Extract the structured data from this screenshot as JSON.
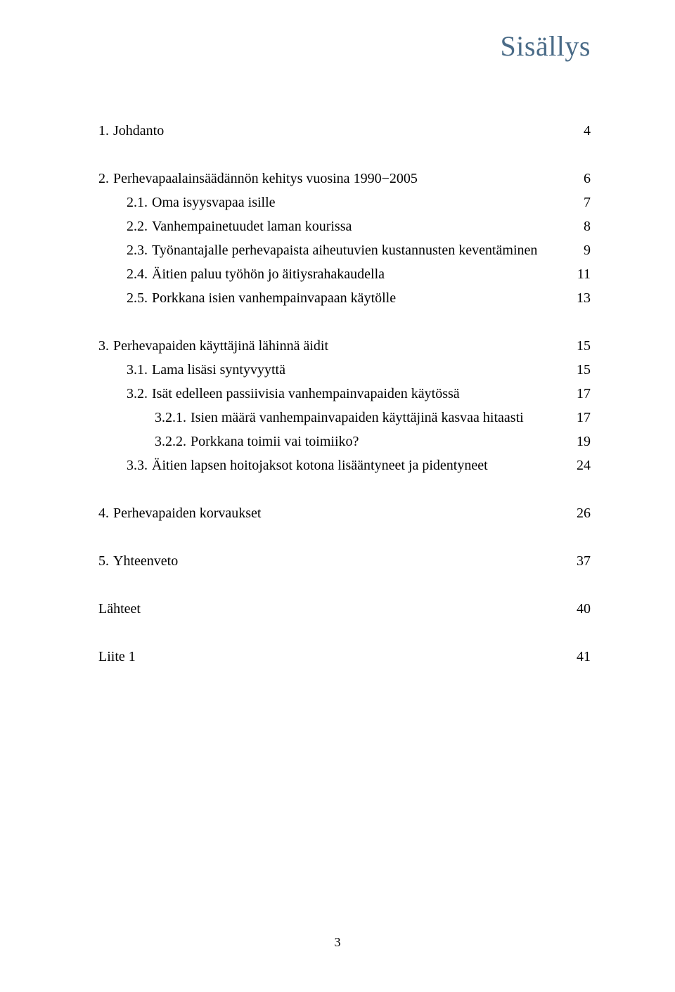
{
  "title": "Sisällys",
  "page_number": "3",
  "colors": {
    "title_color": "#4a6b87",
    "text_color": "#000000",
    "background": "#ffffff"
  },
  "typography": {
    "title_fontsize": 40,
    "body_fontsize": 20,
    "font_family": "Georgia, serif"
  },
  "entries": [
    {
      "level": 0,
      "num": "1.",
      "label": "Johdanto",
      "page": "4",
      "gap_after": true
    },
    {
      "level": 0,
      "num": "2.",
      "label": "Perhevapaalainsäädännön kehitys vuosina 1990−2005",
      "page": "6"
    },
    {
      "level": 1,
      "num": "2.1.",
      "label": "Oma isyysvapaa isille",
      "page": "7"
    },
    {
      "level": 1,
      "num": "2.2.",
      "label": "Vanhempainetuudet laman kourissa",
      "page": "8"
    },
    {
      "level": 1,
      "num": "2.3.",
      "label": "Työnantajalle perhevapaista aiheutuvien kustannusten keventäminen",
      "page": "9"
    },
    {
      "level": 1,
      "num": "2.4.",
      "label": "Äitien paluu työhön jo äitiysrahakaudella",
      "page": "11"
    },
    {
      "level": 1,
      "num": "2.5.",
      "label": "Porkkana isien vanhempainvapaan käytölle",
      "page": "13",
      "gap_after": true
    },
    {
      "level": 0,
      "num": "3.",
      "label": "Perhevapaiden käyttäjinä lähinnä äidit",
      "page": "15"
    },
    {
      "level": 1,
      "num": "3.1.",
      "label": "Lama lisäsi syntyvyyttä",
      "page": "15"
    },
    {
      "level": 1,
      "num": "3.2.",
      "label": "Isät edelleen passiivisia vanhempainvapaiden käytössä",
      "page": "17"
    },
    {
      "level": 2,
      "num": "3.2.1.",
      "label": "Isien määrä vanhempainvapaiden käyttäjinä kasvaa hitaasti",
      "page": "17"
    },
    {
      "level": 2,
      "num": "3.2.2.",
      "label": "Porkkana toimii vai toimiiko?",
      "page": "19"
    },
    {
      "level": 1,
      "num": "3.3.",
      "label": "Äitien lapsen hoitojaksot kotona lisääntyneet ja pidentyneet",
      "page": "24",
      "gap_after": true
    },
    {
      "level": 0,
      "num": "4.",
      "label": "Perhevapaiden korvaukset",
      "page": "26",
      "gap_after": true
    },
    {
      "level": 0,
      "num": "5.",
      "label": "Yhteenveto ",
      "page": "37",
      "gap_after": true
    },
    {
      "level": 0,
      "num": "",
      "label": "Lähteet",
      "page": "40",
      "gap_after": true
    },
    {
      "level": 0,
      "num": "",
      "label": "Liite 1",
      "page": "41"
    }
  ]
}
